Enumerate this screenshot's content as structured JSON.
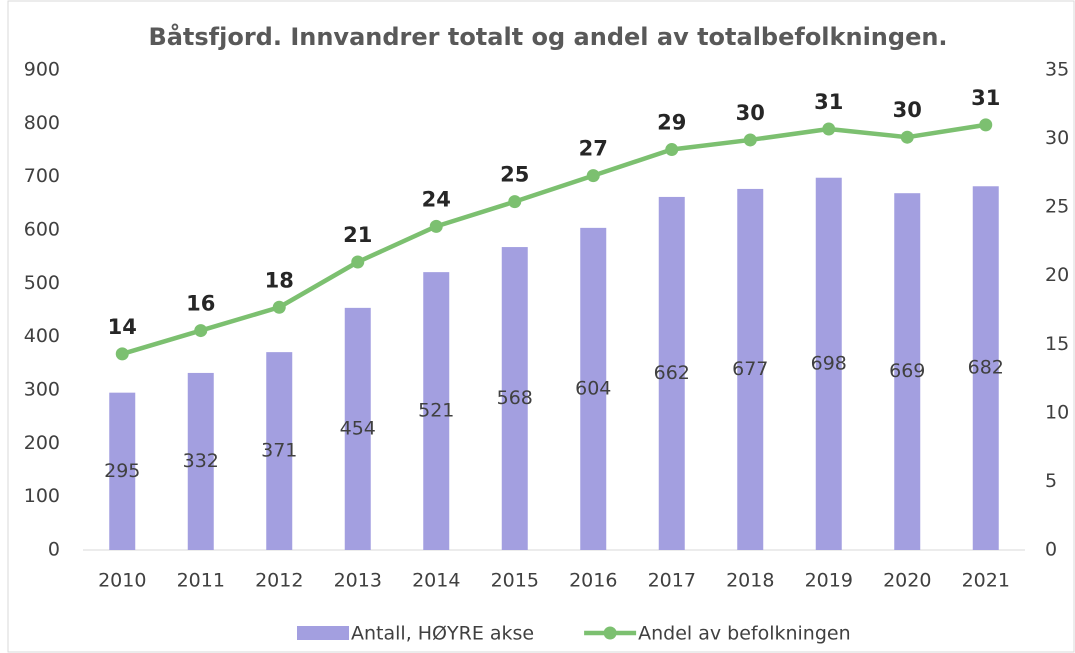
{
  "chart_data": {
    "type": "bar-line",
    "title": "Båtsfjord. Innvandrer totalt og andel av totalbefolkningen.",
    "categories": [
      "2010",
      "2011",
      "2012",
      "2013",
      "2014",
      "2015",
      "2016",
      "2017",
      "2018",
      "2019",
      "2020",
      "2021"
    ],
    "series": [
      {
        "name": "Antall, HØYRE akse",
        "type": "bar",
        "color": "#a39fe0",
        "axis": "y",
        "values": [
          295,
          332,
          371,
          454,
          521,
          568,
          604,
          662,
          677,
          698,
          669,
          682
        ]
      },
      {
        "name": "Andel av befolkningen",
        "type": "line",
        "color": "#7cc070",
        "axis": "y2",
        "values": [
          14.3,
          16.0,
          17.7,
          21.0,
          23.6,
          25.4,
          27.3,
          29.2,
          29.9,
          30.7,
          30.1,
          31.0
        ],
        "value_labels": [
          "14",
          "16",
          "18",
          "21",
          "24",
          "25",
          "27",
          "29",
          "30",
          "31",
          "30",
          "31"
        ]
      }
    ],
    "ylim": [
      0,
      900
    ],
    "yticks": [
      0,
      100,
      200,
      300,
      400,
      500,
      600,
      700,
      800,
      900
    ],
    "y2lim": [
      0,
      35
    ],
    "y2ticks": [
      0,
      5,
      10,
      15,
      20,
      25,
      30,
      35
    ],
    "legend": "bottom"
  }
}
